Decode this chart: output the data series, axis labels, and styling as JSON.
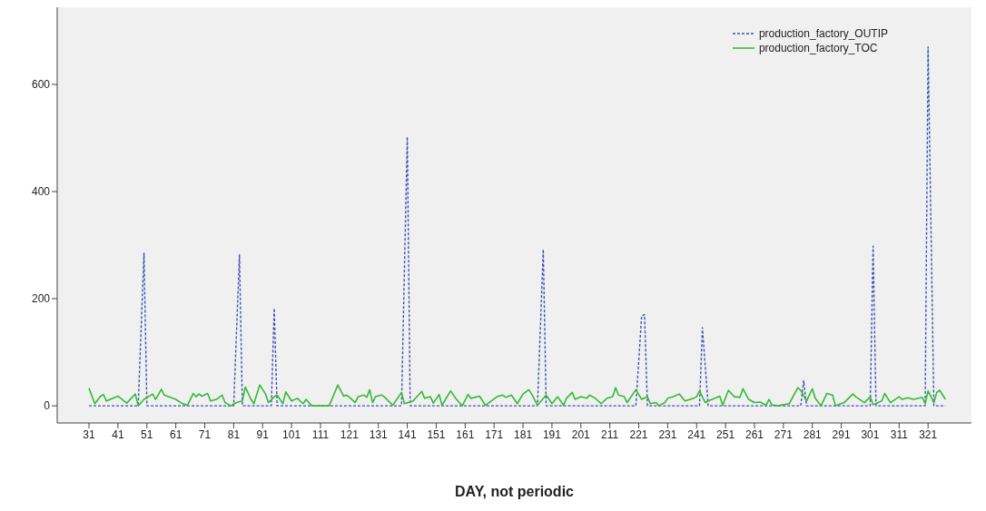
{
  "chart_data": {
    "type": "line",
    "xlabel": "DAY, not periodic",
    "xlim": [
      20,
      336
    ],
    "xticks": [
      31,
      41,
      51,
      61,
      71,
      81,
      91,
      101,
      111,
      121,
      131,
      141,
      151,
      161,
      171,
      181,
      191,
      201,
      211,
      221,
      231,
      241,
      251,
      261,
      271,
      281,
      291,
      301,
      311,
      321
    ],
    "ylim": [
      -32,
      744
    ],
    "yticks": [
      0,
      200,
      400,
      600
    ],
    "grid": false,
    "legend": "top right",
    "marker": "none",
    "series": [
      {
        "name": "production_factory_OUTIP",
        "color": "#3f51b5",
        "line_style": "dashed",
        "x": [
          31,
          48,
          50,
          51,
          81,
          83,
          84,
          94,
          95,
          96,
          139,
          141,
          142,
          186,
          188,
          189,
          220,
          222,
          223,
          224,
          242,
          243,
          245,
          277,
          278,
          279,
          301,
          302,
          303,
          320,
          321,
          323,
          327
        ],
        "values": [
          0,
          0,
          285,
          0,
          0,
          282,
          0,
          0,
          182,
          0,
          0,
          502,
          0,
          0,
          292,
          0,
          0,
          168,
          170,
          0,
          0,
          146,
          0,
          0,
          47,
          0,
          0,
          298,
          0,
          0,
          670,
          0,
          0
        ]
      },
      {
        "name": "production_factory_TOC",
        "color": "#33bb33",
        "line_style": "solid",
        "x": [
          31,
          33,
          35,
          36,
          37,
          41,
          44,
          47,
          48,
          50,
          53,
          54,
          56,
          57,
          61,
          63,
          65,
          67,
          68,
          69,
          70,
          72,
          73,
          75,
          77,
          78,
          80,
          82,
          84,
          85,
          87,
          88,
          90,
          92,
          93,
          95,
          96,
          98,
          99,
          101,
          103,
          105,
          106,
          108,
          114,
          117,
          119,
          120,
          121,
          123,
          124,
          126,
          127,
          128,
          129,
          130,
          132,
          133,
          136,
          139,
          140,
          143,
          146,
          147,
          149,
          150,
          152,
          153,
          156,
          158,
          160,
          162,
          163,
          166,
          168,
          172,
          174,
          175,
          177,
          179,
          181,
          183,
          184,
          186,
          189,
          191,
          193,
          195,
          196,
          198,
          199,
          201,
          203,
          204,
          206,
          208,
          210,
          212,
          213,
          214,
          216,
          217,
          220,
          222,
          224,
          225,
          227,
          228,
          230,
          231,
          233,
          235,
          237,
          240,
          241,
          242,
          244,
          245,
          249,
          250,
          252,
          254,
          256,
          257,
          259,
          261,
          263,
          265,
          266,
          267,
          269,
          273,
          276,
          277,
          279,
          281,
          282,
          284,
          286,
          288,
          289,
          292,
          295,
          296,
          299,
          301,
          302,
          305,
          306,
          308,
          311,
          312,
          314,
          316,
          319,
          320,
          321,
          323,
          324,
          325,
          327
        ],
        "values": [
          33,
          4,
          18,
          21,
          9,
          18,
          5,
          22,
          0,
          12,
          22,
          12,
          31,
          20,
          12,
          5,
          1,
          23,
          17,
          22,
          18,
          23,
          9,
          12,
          20,
          6,
          0,
          6,
          9,
          35,
          12,
          4,
          39,
          22,
          6,
          17,
          20,
          4,
          26,
          9,
          14,
          4,
          12,
          0,
          0,
          39,
          18,
          20,
          16,
          6,
          17,
          20,
          16,
          30,
          6,
          17,
          20,
          17,
          1,
          25,
          4,
          9,
          27,
          14,
          17,
          5,
          21,
          1,
          28,
          12,
          0,
          21,
          14,
          18,
          1,
          17,
          20,
          16,
          20,
          4,
          22,
          30,
          22,
          1,
          20,
          4,
          17,
          1,
          14,
          25,
          12,
          17,
          14,
          20,
          14,
          4,
          14,
          17,
          34,
          20,
          17,
          6,
          30,
          12,
          17,
          4,
          6,
          0,
          6,
          14,
          17,
          22,
          9,
          14,
          17,
          28,
          6,
          9,
          18,
          1,
          29,
          17,
          16,
          32,
          12,
          6,
          7,
          1,
          12,
          2,
          0,
          4,
          34,
          29,
          9,
          32,
          14,
          0,
          23,
          20,
          0,
          6,
          22,
          17,
          6,
          17,
          2,
          9,
          23,
          6,
          17,
          12,
          15,
          12,
          16,
          4,
          28,
          6,
          25,
          29,
          12
        ]
      }
    ]
  }
}
